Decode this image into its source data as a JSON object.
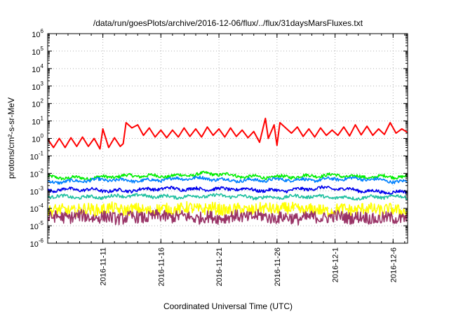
{
  "chart_data": {
    "type": "line",
    "title": "/data/run/goesPlots/archive/2016-12-06/flux/../flux/31daysMarsFluxes.txt",
    "xlabel": "Coordinated Universal Time (UTC)",
    "ylabel": "protons/cm²-s-sr-MeV",
    "y_scale": "log",
    "ylim": [
      1e-06,
      1000000.0
    ],
    "xlim": [
      "2016-11-06T06:00",
      "2016-12-07T06:00"
    ],
    "grid": true,
    "x_tick_labels": [
      "2016-11-11",
      "2016-11-16",
      "2016-11-21",
      "2016-11-26",
      "2016-12-1",
      "2016-12-6"
    ],
    "x_tick_dates": [
      "2016-11-11",
      "2016-11-16",
      "2016-11-21",
      "2016-11-26",
      "2016-12-01",
      "2016-12-06"
    ],
    "y_tick_labels": [
      {
        "base": "10",
        "exp": "-6"
      },
      {
        "base": "10",
        "exp": "-5"
      },
      {
        "base": "10",
        "exp": "-4"
      },
      {
        "base": "10",
        "exp": "-3"
      },
      {
        "base": "10",
        "exp": "-2"
      },
      {
        "base": "10",
        "exp": "-1"
      },
      {
        "base": "10",
        "exp": "0"
      },
      {
        "base": "10",
        "exp": "1"
      },
      {
        "base": "10",
        "exp": "2"
      },
      {
        "base": "10",
        "exp": "3"
      },
      {
        "base": "10",
        "exp": "4"
      },
      {
        "base": "10",
        "exp": "5"
      },
      {
        "base": "10",
        "exp": "6"
      }
    ],
    "series": [
      {
        "color": "#ff0000",
        "noisy": false,
        "anchors": [
          [
            "2016-11-06T06:00",
            0.9
          ],
          [
            "2016-11-06T18:00",
            0.3
          ],
          [
            "2016-11-07T06:00",
            1.0
          ],
          [
            "2016-11-07T18:00",
            0.3
          ],
          [
            "2016-11-08T06:00",
            1.1
          ],
          [
            "2016-11-08T18:00",
            0.35
          ],
          [
            "2016-11-09T06:00",
            1.2
          ],
          [
            "2016-11-09T18:00",
            0.35
          ],
          [
            "2016-11-10T06:00",
            1.0
          ],
          [
            "2016-11-10T18:00",
            0.25
          ],
          [
            "2016-11-11T00:00",
            3.5
          ],
          [
            "2016-11-11T12:00",
            0.3
          ],
          [
            "2016-11-12T00:00",
            1.1
          ],
          [
            "2016-11-12T12:00",
            0.35
          ],
          [
            "2016-11-12T18:00",
            0.5
          ],
          [
            "2016-11-13T00:00",
            8.0
          ],
          [
            "2016-11-13T12:00",
            4.0
          ],
          [
            "2016-11-14T00:00",
            6.0
          ],
          [
            "2016-11-14T12:00",
            1.5
          ],
          [
            "2016-11-15T00:00",
            4.0
          ],
          [
            "2016-11-15T12:00",
            1.2
          ],
          [
            "2016-11-16T00:00",
            3.0
          ],
          [
            "2016-11-16T12:00",
            1.1
          ],
          [
            "2016-11-17T00:00",
            3.0
          ],
          [
            "2016-11-17T12:00",
            1.2
          ],
          [
            "2016-11-18T00:00",
            4.0
          ],
          [
            "2016-11-18T12:00",
            1.3
          ],
          [
            "2016-11-19T00:00",
            3.5
          ],
          [
            "2016-11-19T12:00",
            1.2
          ],
          [
            "2016-11-20T00:00",
            4.5
          ],
          [
            "2016-11-20T12:00",
            1.5
          ],
          [
            "2016-11-21T00:00",
            3.5
          ],
          [
            "2016-11-21T12:00",
            1.2
          ],
          [
            "2016-11-22T00:00",
            4.0
          ],
          [
            "2016-11-22T12:00",
            1.3
          ],
          [
            "2016-11-23T00:00",
            3.0
          ],
          [
            "2016-11-23T12:00",
            1.1
          ],
          [
            "2016-11-24T00:00",
            2.5
          ],
          [
            "2016-11-24T12:00",
            0.6
          ],
          [
            "2016-11-25T00:00",
            14.0
          ],
          [
            "2016-11-25T06:00",
            1.0
          ],
          [
            "2016-11-25T18:00",
            6.0
          ],
          [
            "2016-11-26T00:00",
            0.4
          ],
          [
            "2016-11-26T06:00",
            8.0
          ],
          [
            "2016-11-26T18:00",
            4.0
          ],
          [
            "2016-11-27T06:00",
            2.0
          ],
          [
            "2016-11-27T18:00",
            4.5
          ],
          [
            "2016-11-28T06:00",
            1.3
          ],
          [
            "2016-11-28T18:00",
            3.5
          ],
          [
            "2016-11-29T06:00",
            1.2
          ],
          [
            "2016-11-29T18:00",
            4.0
          ],
          [
            "2016-11-30T06:00",
            1.5
          ],
          [
            "2016-11-30T18:00",
            3.0
          ],
          [
            "2016-12-01T06:00",
            1.5
          ],
          [
            "2016-12-01T18:00",
            4.5
          ],
          [
            "2016-12-02T06:00",
            1.4
          ],
          [
            "2016-12-02T18:00",
            6.0
          ],
          [
            "2016-12-03T06:00",
            1.6
          ],
          [
            "2016-12-03T18:00",
            5.0
          ],
          [
            "2016-12-04T06:00",
            1.5
          ],
          [
            "2016-12-04T18:00",
            3.5
          ],
          [
            "2016-12-05T06:00",
            1.7
          ],
          [
            "2016-12-05T18:00",
            8.0
          ],
          [
            "2016-12-06T06:00",
            2.0
          ],
          [
            "2016-12-06T18:00",
            3.5
          ],
          [
            "2016-12-07T06:00",
            2.2
          ]
        ]
      },
      {
        "color": "#00ee00",
        "noisy": true,
        "anchors": [
          [
            "2016-11-06T06:00",
            0.0055
          ],
          [
            "2016-11-13T00:00",
            0.0065
          ],
          [
            "2016-11-20T00:00",
            0.009
          ],
          [
            "2016-11-23T00:00",
            0.007
          ],
          [
            "2016-11-28T00:00",
            0.006
          ],
          [
            "2016-12-01T00:00",
            0.0085
          ],
          [
            "2016-12-04T00:00",
            0.006
          ],
          [
            "2016-12-07T06:00",
            0.006
          ]
        ]
      },
      {
        "color": "#0080ff",
        "noisy": true,
        "anchors": [
          [
            "2016-11-06T06:00",
            0.0035
          ],
          [
            "2016-11-13T00:00",
            0.004
          ],
          [
            "2016-11-20T00:00",
            0.005
          ],
          [
            "2016-11-25T00:00",
            0.0038
          ],
          [
            "2016-12-01T00:00",
            0.005
          ],
          [
            "2016-12-07T06:00",
            0.0035
          ]
        ]
      },
      {
        "color": "#0000ee",
        "noisy": true,
        "anchors": [
          [
            "2016-11-06T06:00",
            0.0011
          ],
          [
            "2016-11-13T00:00",
            0.0011
          ],
          [
            "2016-11-20T00:00",
            0.0014
          ],
          [
            "2016-11-25T00:00",
            0.001
          ],
          [
            "2016-11-29T00:00",
            0.0014
          ],
          [
            "2016-12-03T00:00",
            0.0011
          ],
          [
            "2016-12-07T06:00",
            0.0008
          ]
        ]
      },
      {
        "color": "#20c0a0",
        "noisy": true,
        "anchors": [
          [
            "2016-11-06T06:00",
            0.00045
          ],
          [
            "2016-11-18T00:00",
            0.0005
          ],
          [
            "2016-11-25T00:00",
            0.00045
          ],
          [
            "2016-12-07T06:00",
            0.00042
          ]
        ]
      },
      {
        "color": "#ffff00",
        "noisy": true,
        "anchors": [
          [
            "2016-11-06T06:00",
            8e-05
          ],
          [
            "2016-11-20T00:00",
            9e-05
          ],
          [
            "2016-12-07T06:00",
            8e-05
          ]
        ]
      },
      {
        "color": "#993366",
        "noisy": true,
        "anchors": [
          [
            "2016-11-06T06:00",
            3e-05
          ],
          [
            "2016-11-20T00:00",
            3.2e-05
          ],
          [
            "2016-12-07T06:00",
            2.8e-05
          ]
        ]
      }
    ]
  }
}
